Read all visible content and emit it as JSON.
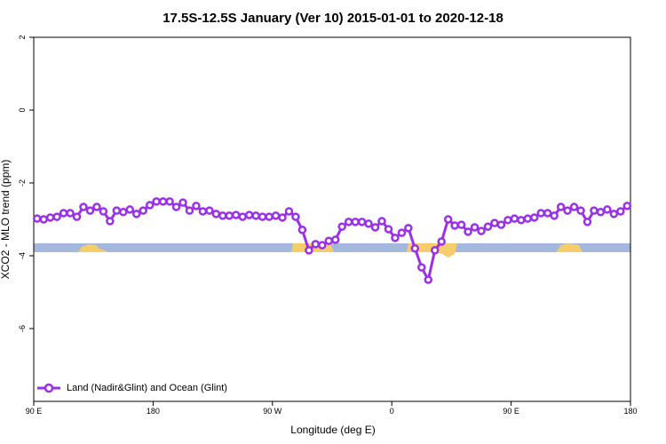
{
  "chart_data": {
    "type": "line",
    "title": "17.5S-12.5S January (Ver 10)   2015-01-01 to 2020-12-18",
    "x_label": "Longitude (deg E)",
    "y_label": "XCO2 - MLO trend (ppm)",
    "xlim": [
      90,
      540
    ],
    "ylim": [
      -8,
      2
    ],
    "xticks": [
      {
        "value": 90,
        "label": "90 E"
      },
      180,
      {
        "value": 270,
        "label": "90 W"
      },
      {
        "value": 360,
        "label": "0"
      },
      {
        "value": 450,
        "label": "90 E"
      },
      {
        "value": 540,
        "label": "180"
      }
    ],
    "yticks": [
      -6,
      -4,
      -2,
      0,
      2
    ],
    "legend": "bottom-left",
    "x": [
      92.5,
      97.5,
      102.5,
      107.5,
      112.5,
      117.5,
      122.5,
      127.5,
      132.5,
      137.5,
      142.5,
      147.5,
      152.5,
      157.5,
      162.5,
      167.5,
      172.5,
      177.5,
      182.5,
      187.5,
      192.5,
      197.5,
      202.5,
      207.5,
      212.5,
      217.5,
      222.5,
      227.5,
      232.5,
      237.5,
      242.5,
      247.5,
      252.5,
      257.5,
      262.5,
      267.5,
      272.5,
      277.5,
      282.5,
      287.5,
      292.5,
      297.5,
      302.5,
      307.5,
      312.5,
      317.5,
      322.5,
      327.5,
      332.5,
      337.5,
      342.5,
      347.5,
      352.5,
      357.5,
      362.5,
      367.5,
      372.5,
      377.5,
      382.5,
      387.5,
      392.5,
      397.5,
      402.5,
      407.5,
      412.5,
      417.5,
      422.5,
      427.5,
      432.5,
      437.5,
      442.5,
      447.5,
      452.5,
      457.5,
      462.5,
      467.5,
      472.5,
      477.5,
      482.5,
      487.5,
      492.5,
      497.5,
      502.5,
      507.5,
      512.5,
      517.5,
      522.5,
      527.5,
      532.5,
      537.5
    ],
    "series": [
      {
        "name": "Land (Nadir&Glint) and Ocean (Glint)",
        "color": "#9b30e8",
        "values": [
          -2.98,
          -3.0,
          -2.95,
          -2.93,
          -2.83,
          -2.83,
          -2.93,
          -2.66,
          -2.76,
          -2.66,
          -2.78,
          -3.05,
          -2.76,
          -2.8,
          -2.73,
          -2.85,
          -2.76,
          -2.61,
          -2.51,
          -2.51,
          -2.51,
          -2.66,
          -2.54,
          -2.76,
          -2.63,
          -2.78,
          -2.76,
          -2.85,
          -2.9,
          -2.9,
          -2.88,
          -2.93,
          -2.88,
          -2.9,
          -2.93,
          -2.93,
          -2.9,
          -2.95,
          -2.78,
          -2.93,
          -3.29,
          -3.85,
          -3.68,
          -3.71,
          -3.59,
          -3.56,
          -3.2,
          -3.07,
          -3.07,
          -3.07,
          -3.12,
          -3.22,
          -3.05,
          -3.27,
          -3.51,
          -3.37,
          -3.24,
          -3.8,
          -4.32,
          -4.66,
          -3.85,
          -3.61,
          -3.0,
          -3.17,
          -3.15,
          -3.34,
          -3.22,
          -3.32,
          -3.2,
          -3.1,
          -3.15,
          -3.02,
          -2.98,
          -3.02,
          -2.98,
          -2.95,
          -2.83,
          -2.83,
          -2.9,
          -2.66,
          -2.76,
          -2.66,
          -2.76,
          -3.07,
          -2.76,
          -2.8,
          -2.73,
          -2.85,
          -2.78,
          -2.63
        ]
      }
    ]
  }
}
